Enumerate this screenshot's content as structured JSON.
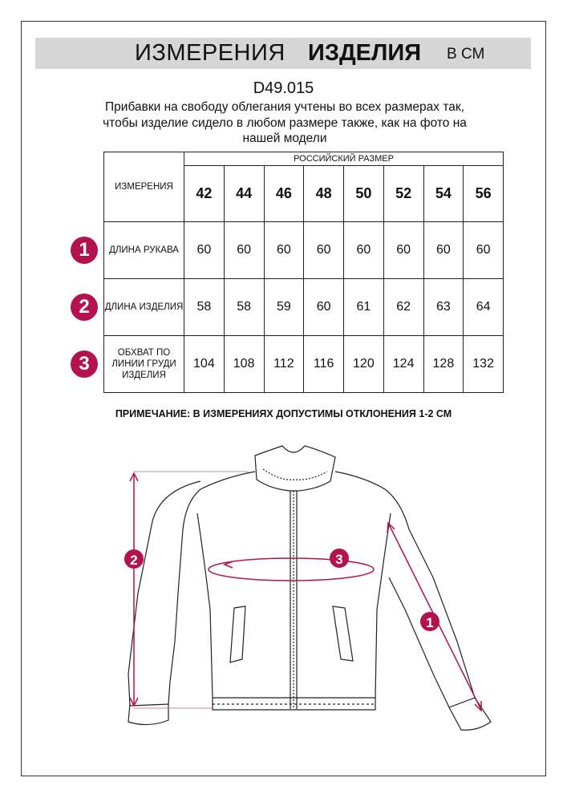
{
  "header": {
    "title_regular": "ИЗМЕРЕНИЯ",
    "title_bold": "ИЗДЕЛИЯ",
    "unit": "В СМ"
  },
  "article": "D49.015",
  "description": "Прибавки на свободу облегания учтены во всех размерах так, чтобы изделие сидело в любом размере также, как на фото на нашей модели",
  "table": {
    "corner": "ИЗМЕРЕНИЯ",
    "group_header": "РОССИЙСКИЙ РАЗМЕР",
    "sizes": [
      "42",
      "44",
      "46",
      "48",
      "50",
      "52",
      "54",
      "56"
    ],
    "rows": [
      {
        "num": "1",
        "label": "ДЛИНА РУКАВА",
        "values": [
          "60",
          "60",
          "60",
          "60",
          "60",
          "60",
          "60",
          "60"
        ]
      },
      {
        "num": "2",
        "label": "ДЛИНА ИЗДЕЛИЯ",
        "values": [
          "58",
          "58",
          "59",
          "60",
          "61",
          "62",
          "63",
          "64"
        ]
      },
      {
        "num": "3",
        "label": "ОБХВАТ ПО ЛИНИИ ГРУДИ ИЗДЕЛИЯ",
        "values": [
          "104",
          "108",
          "112",
          "116",
          "120",
          "124",
          "128",
          "132"
        ]
      }
    ]
  },
  "note": "ПРИМЕЧАНИЕ: В ИЗМЕРЕНИЯХ ДОПУСТИМЫ ОТКЛОНЕНИЯ 1-2 СМ",
  "diagram": {
    "markers": [
      "1",
      "2",
      "3"
    ],
    "accent_color": "#b3124e"
  }
}
